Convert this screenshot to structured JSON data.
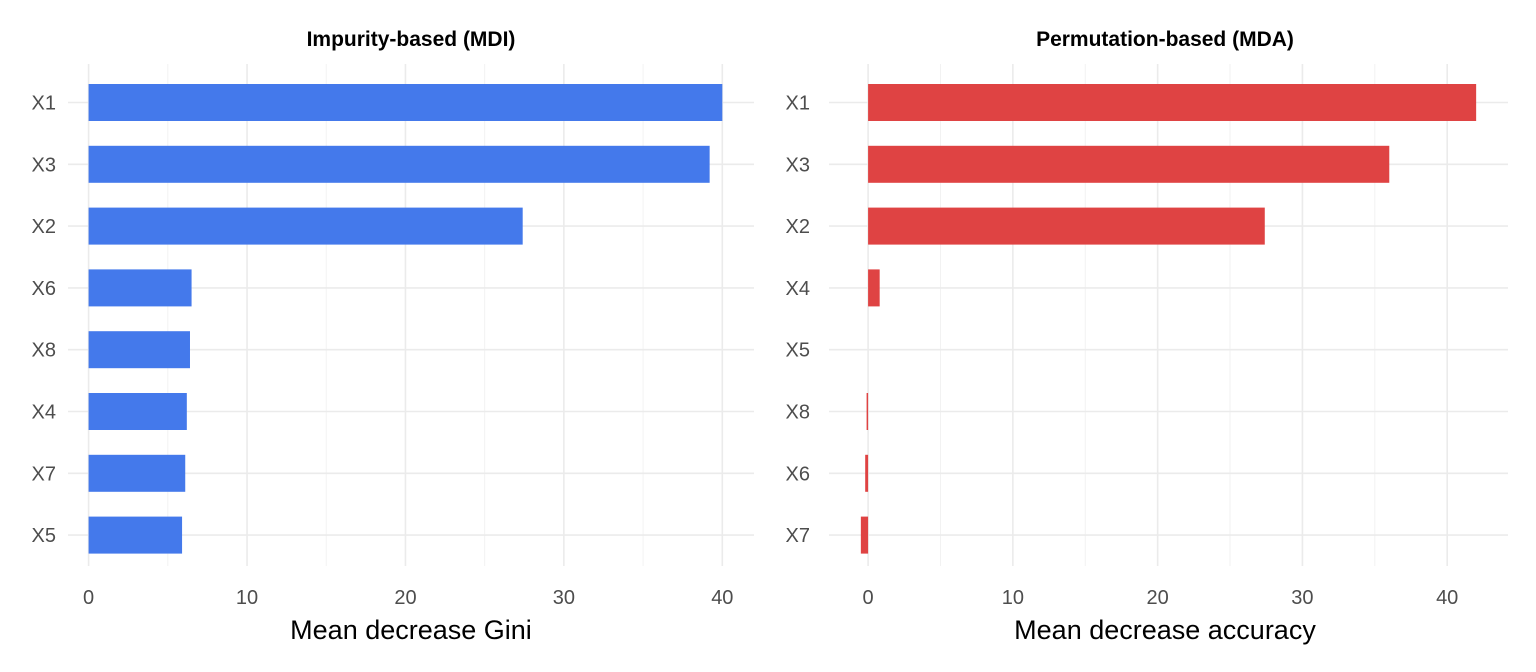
{
  "chart_data": [
    {
      "type": "bar",
      "orientation": "horizontal",
      "title": "Impurity-based (MDI)",
      "xlabel": "Mean decrease Gini",
      "ylabel": "",
      "categories": [
        "X1",
        "X3",
        "X2",
        "X6",
        "X8",
        "X4",
        "X7",
        "X5"
      ],
      "values": [
        40.0,
        39.2,
        27.4,
        6.5,
        6.4,
        6.2,
        6.1,
        5.9
      ],
      "xlim": [
        -1.3,
        42
      ],
      "xticks": [
        0,
        10,
        20,
        30,
        40
      ],
      "color": "#4479eb",
      "grid": true,
      "legend": "none"
    },
    {
      "type": "bar",
      "orientation": "horizontal",
      "title": "Permutation-based (MDA)",
      "xlabel": "Mean decrease accuracy",
      "ylabel": "",
      "categories": [
        "X1",
        "X3",
        "X2",
        "X4",
        "X5",
        "X8",
        "X6",
        "X7"
      ],
      "values": [
        42.0,
        36.0,
        27.4,
        0.8,
        0.0,
        -0.1,
        -0.2,
        -0.5
      ],
      "xlim": [
        -2.7,
        44.2
      ],
      "xticks": [
        0,
        10,
        20,
        30,
        40
      ],
      "color": "#df4343",
      "grid": true,
      "legend": "none"
    }
  ]
}
